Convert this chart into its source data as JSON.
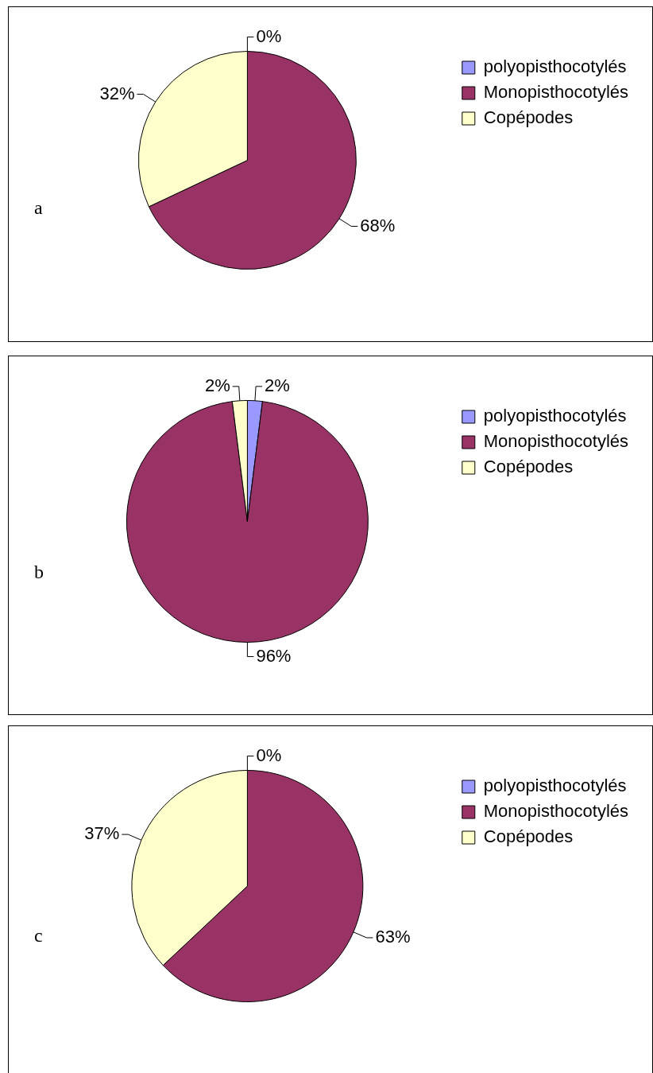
{
  "chart_data": [
    {
      "type": "pie",
      "categories": [
        "polyopisthocotylés",
        "Monopisthocotylés",
        "Copépodes"
      ],
      "values": [
        0,
        68,
        32
      ],
      "value_labels": [
        "0%",
        "68%",
        "32%"
      ],
      "colors": [
        "#9999ff",
        "#993366",
        "#ffffcc"
      ],
      "legend": "top right",
      "annotations": [
        "a"
      ]
    },
    {
      "type": "pie",
      "categories": [
        "polyopisthocotylés",
        "Monopisthocotylés",
        "Copépodes"
      ],
      "values": [
        2,
        96,
        2
      ],
      "value_labels": [
        "2%",
        "96%",
        "2%"
      ],
      "colors": [
        "#9999ff",
        "#993366",
        "#ffffcc"
      ],
      "legend": "top right",
      "annotations": [
        "b"
      ]
    },
    {
      "type": "pie",
      "categories": [
        "polyopisthocotylés",
        "Monopisthocotylés",
        "Copépodes"
      ],
      "values": [
        0,
        63,
        37
      ],
      "value_labels": [
        "0%",
        "63%",
        "37%"
      ],
      "colors": [
        "#9999ff",
        "#993366",
        "#ffffcc"
      ],
      "legend": "top right",
      "annotations": [
        "c"
      ]
    }
  ]
}
